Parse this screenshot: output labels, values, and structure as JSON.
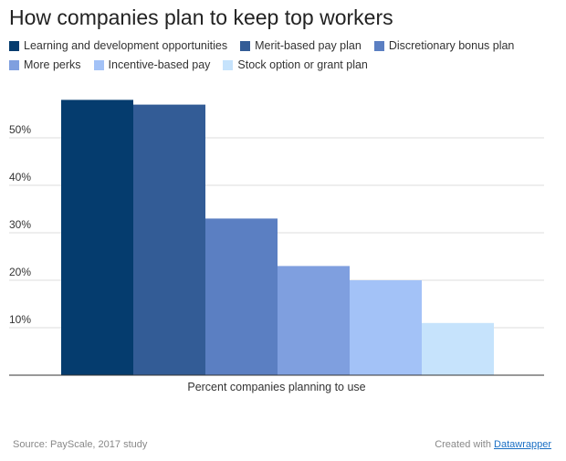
{
  "chart_data": {
    "type": "bar",
    "title": "How companies plan to keep top workers",
    "xlabel": "Percent companies planning to use",
    "ylabel": "",
    "ylim": [
      0,
      60
    ],
    "y_ticks": [
      10,
      20,
      30,
      40,
      50
    ],
    "y_tick_labels": [
      "10%",
      "20%",
      "30%",
      "40%",
      "50%"
    ],
    "grid": true,
    "legend_position": "top",
    "categories": [
      "Percent companies planning to use"
    ],
    "series": [
      {
        "name": "Learning and development opportunities",
        "values": [
          58
        ],
        "color": "#053c6e"
      },
      {
        "name": "Merit-based pay plan",
        "values": [
          57
        ],
        "color": "#335c96"
      },
      {
        "name": "Discretionary bonus plan",
        "values": [
          33
        ],
        "color": "#5b7fc2"
      },
      {
        "name": "More perks",
        "values": [
          23
        ],
        "color": "#7f9fdf"
      },
      {
        "name": "Incentive-based pay",
        "values": [
          20
        ],
        "color": "#a3c2f7"
      },
      {
        "name": "Stock option or grant plan",
        "values": [
          11
        ],
        "color": "#c6e3fc"
      }
    ]
  },
  "footer": {
    "source": "Source: PayScale, 2017 study",
    "credit_prefix": "Created with",
    "credit_link": "Datawrapper"
  }
}
